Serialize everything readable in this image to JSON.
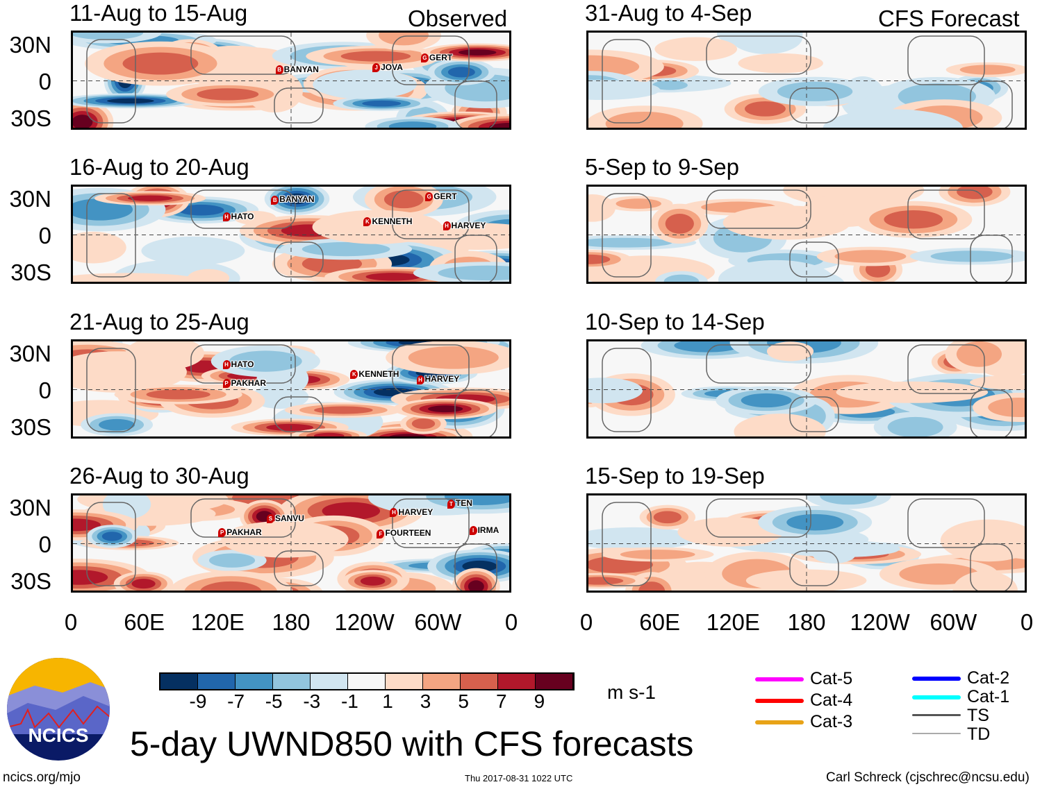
{
  "chart_data": {
    "type": "heatmap",
    "title": "5-day UWND850 with CFS forecasts",
    "variable": "850 hPa zonal wind anomaly",
    "units": "m s-1",
    "colorbar": {
      "tick_labels": [
        "-9",
        "-7",
        "-5",
        "-3",
        "-1",
        "1",
        "3",
        "5",
        "7",
        "9"
      ],
      "colors": [
        "#053061",
        "#2166ac",
        "#4393c3",
        "#92c5de",
        "#d1e5f0",
        "#f7f7f7",
        "#fddbc7",
        "#f4a582",
        "#d6604d",
        "#b2182b",
        "#67001f"
      ]
    },
    "columns": [
      {
        "label": "Observed",
        "panels": [
          {
            "title": "11-Aug to 15-Aug",
            "storms": [
              "BANYAN",
              "JOVA",
              "GERT"
            ]
          },
          {
            "title": "16-Aug to 20-Aug",
            "storms": [
              "BANYAN",
              "GERT",
              "HATO",
              "KENNETH",
              "HARVEY"
            ]
          },
          {
            "title": "21-Aug to 25-Aug",
            "storms": [
              "HATO",
              "PAKHAR",
              "KENNETH",
              "HARVEY"
            ]
          },
          {
            "title": "26-Aug to 30-Aug",
            "storms": [
              "PAKHAR",
              "SANVU",
              "HARVEY",
              "TEN",
              "FOURTEEN",
              "IRMA"
            ]
          }
        ]
      },
      {
        "label": "CFS Forecast",
        "panels": [
          {
            "title": "31-Aug to 4-Sep"
          },
          {
            "title": "5-Sep to 9-Sep"
          },
          {
            "title": "10-Sep to 14-Sep"
          },
          {
            "title": "15-Sep to 19-Sep"
          }
        ]
      }
    ],
    "y_ticks": [
      "30N",
      "0",
      "30S"
    ],
    "x_ticks": [
      "0",
      "60E",
      "120E",
      "180",
      "120W",
      "60W",
      "0"
    ],
    "ylim": [
      -40,
      40
    ],
    "xlim": [
      0,
      360
    ]
  },
  "legend": {
    "items": [
      {
        "label": "Cat-5",
        "color": "#ff00ff"
      },
      {
        "label": "Cat-4",
        "color": "#ff0000"
      },
      {
        "label": "Cat-3",
        "color": "#e8a317"
      },
      {
        "label": "Cat-2",
        "color": "#0000ff"
      },
      {
        "label": "Cat-1",
        "color": "#00ffff"
      },
      {
        "label": "TS",
        "color": "#555555"
      },
      {
        "label": "TD",
        "color": "#aaaaaa"
      }
    ]
  },
  "footer": {
    "logo_text": "NCICS",
    "site": "ncics.org/mjo",
    "timestamp": "Thu 2017-08-31 1022 UTC",
    "credit": "Carl Schreck (cjschrec@ncsu.edu)"
  }
}
